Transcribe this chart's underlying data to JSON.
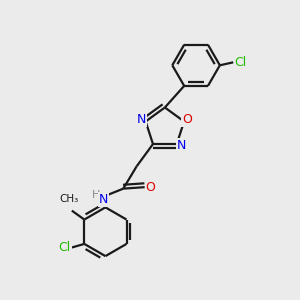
{
  "background_color": "#ebebeb",
  "bond_color": "#1a1a1a",
  "bond_width": 1.6,
  "figsize": [
    3.0,
    3.0
  ],
  "dpi": 100,
  "atom_colors": {
    "N": "#0000ee",
    "O": "#dd0000",
    "Cl": "#22bb00",
    "H": "#888888",
    "C": "#1a1a1a"
  },
  "font_size": 9,
  "font_size_small": 8
}
